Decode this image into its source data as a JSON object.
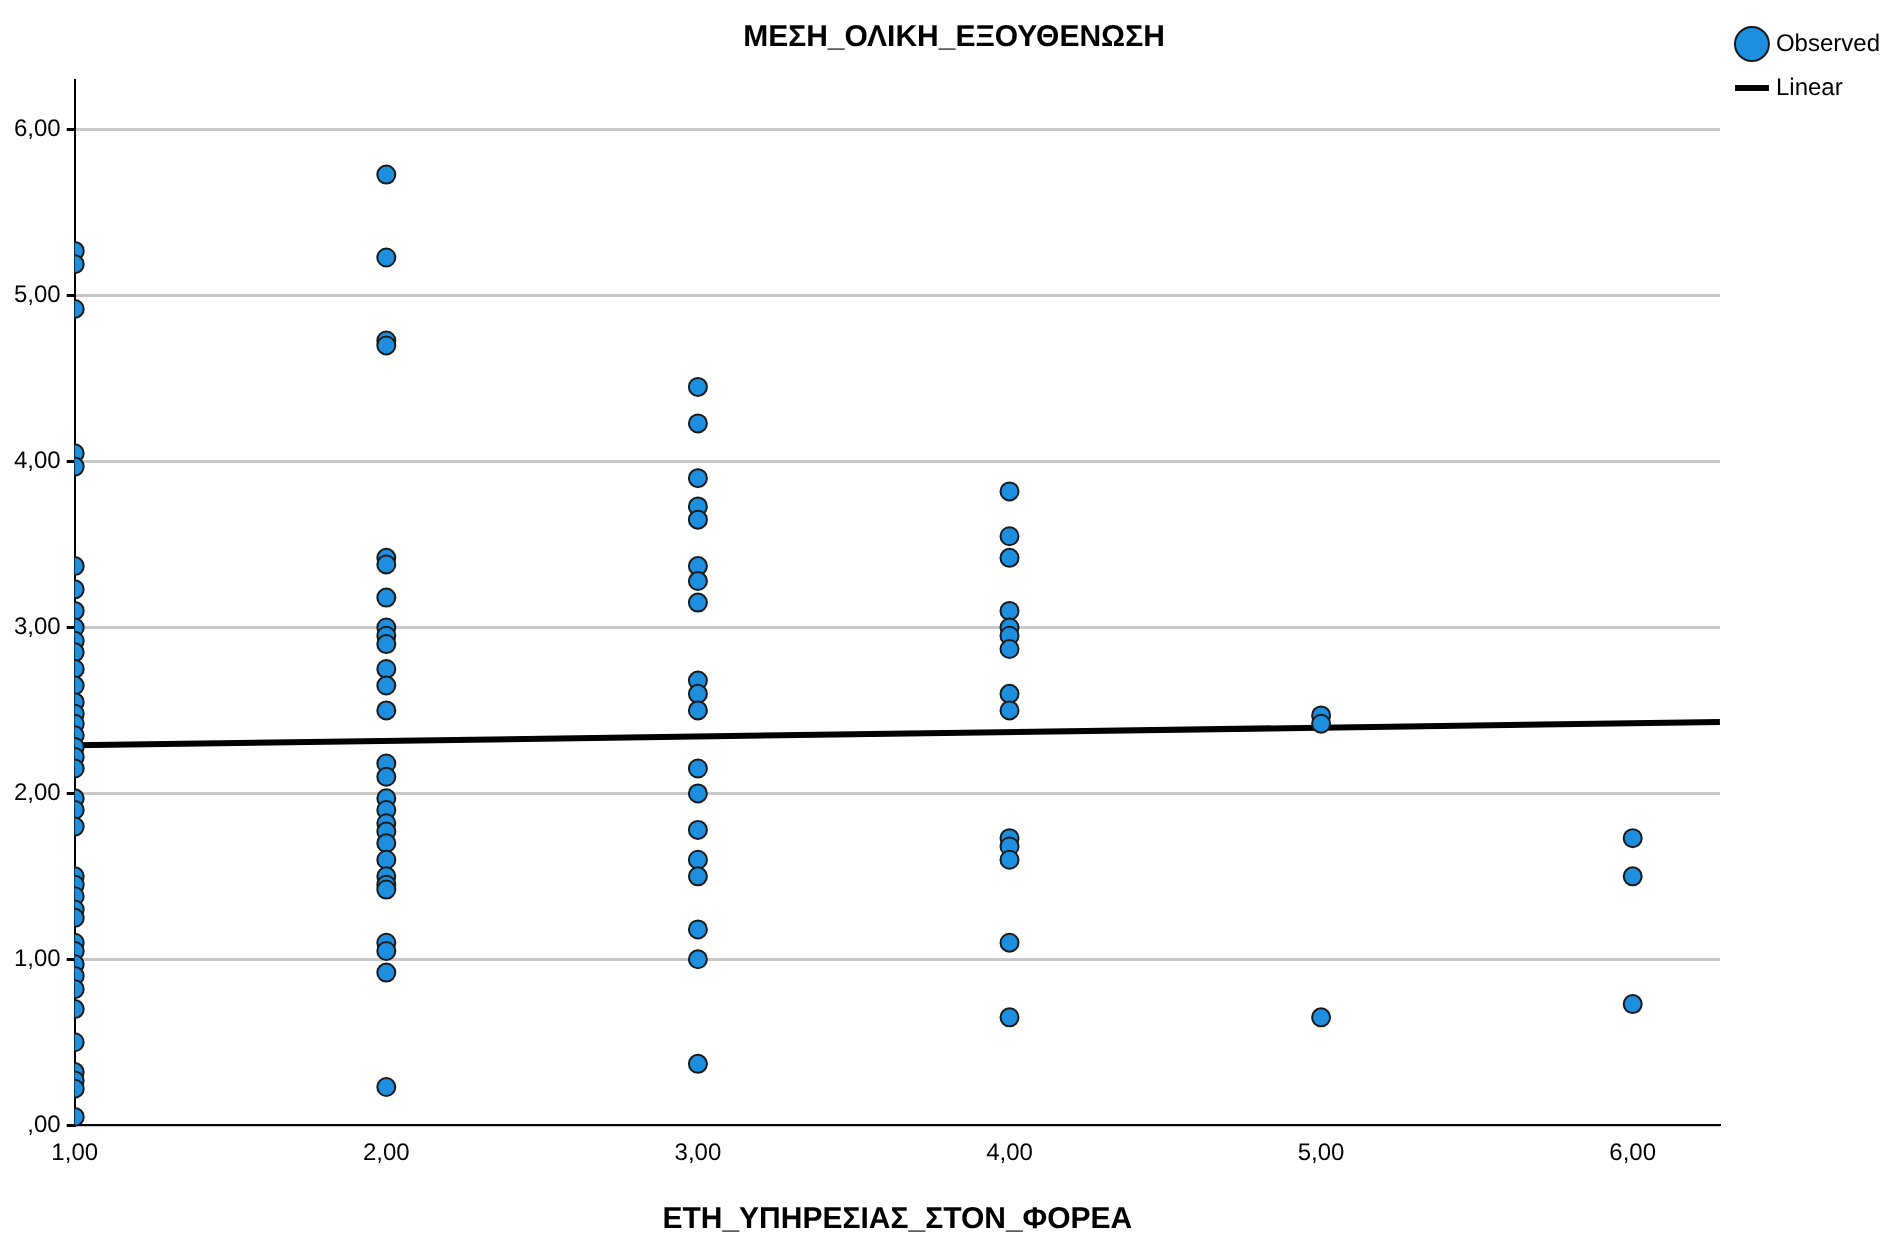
{
  "chart_data": {
    "type": "scatter",
    "title": "ΜΕΣΗ_ΟΛΙΚΗ_ΕΞΟΥΘΕΝΩΣΗ",
    "xlabel": "ΕΤΗ_ΥΠΗΡΕΣΙΑΣ_ΣΤΟΝ_ΦΟΡΕΑ",
    "xlim": [
      1,
      6.28
    ],
    "ylim": [
      0,
      6.3
    ],
    "xticks": [
      {
        "value": 1,
        "label": "1,00"
      },
      {
        "value": 2,
        "label": "2,00"
      },
      {
        "value": 3,
        "label": "3,00"
      },
      {
        "value": 4,
        "label": "4,00"
      },
      {
        "value": 5,
        "label": "5,00"
      },
      {
        "value": 6,
        "label": "6,00"
      }
    ],
    "yticks": [
      {
        "value": 0,
        "label": ",00"
      },
      {
        "value": 1,
        "label": "1,00"
      },
      {
        "value": 2,
        "label": "2,00"
      },
      {
        "value": 3,
        "label": "3,00"
      },
      {
        "value": 4,
        "label": "4,00"
      },
      {
        "value": 5,
        "label": "5,00"
      },
      {
        "value": 6,
        "label": "6,00"
      }
    ],
    "grid": "y",
    "legend": "top right",
    "marker": "circle",
    "series": [
      {
        "name": "Observed",
        "color": "#1e8fdf",
        "x": [
          1,
          1,
          1,
          1,
          1,
          1,
          1,
          1,
          1,
          1,
          1,
          1,
          1,
          1,
          1,
          1,
          1,
          1,
          1,
          1,
          1,
          1,
          1,
          1,
          1,
          1,
          1,
          1,
          1,
          1,
          1,
          1,
          1,
          1,
          1,
          1,
          1,
          1,
          1,
          2,
          2,
          2,
          2,
          2,
          2,
          2,
          2,
          2,
          2,
          2,
          2,
          2,
          2,
          2,
          2,
          2,
          2,
          2,
          2,
          2,
          2,
          2,
          2,
          2,
          2,
          2,
          2,
          3,
          3,
          3,
          3,
          3,
          3,
          3,
          3,
          3,
          3,
          3,
          3,
          3,
          3,
          3,
          3,
          3,
          3,
          3,
          4,
          4,
          4,
          4,
          4,
          4,
          4,
          4,
          4,
          4,
          4,
          4,
          4,
          4,
          5,
          5,
          5,
          6,
          6,
          6
        ],
        "values": [
          5.27,
          5.19,
          4.92,
          4.05,
          3.97,
          3.37,
          3.23,
          3.1,
          3.0,
          2.92,
          2.85,
          2.75,
          2.65,
          2.55,
          2.48,
          2.42,
          2.35,
          2.28,
          2.22,
          2.15,
          1.97,
          1.9,
          1.8,
          1.5,
          1.45,
          1.38,
          1.3,
          1.25,
          1.1,
          1.05,
          0.97,
          0.9,
          0.82,
          0.7,
          0.5,
          0.32,
          0.27,
          0.22,
          0.05,
          5.73,
          5.23,
          4.73,
          4.7,
          3.42,
          3.38,
          3.18,
          3.0,
          2.95,
          2.9,
          2.75,
          2.65,
          2.5,
          2.18,
          2.1,
          1.97,
          1.9,
          1.82,
          1.77,
          1.7,
          1.6,
          1.5,
          1.45,
          1.42,
          1.1,
          1.05,
          0.92,
          0.23,
          4.45,
          4.23,
          3.9,
          3.73,
          3.65,
          3.37,
          3.28,
          3.15,
          2.68,
          2.6,
          2.5,
          2.15,
          2.0,
          1.78,
          1.6,
          1.5,
          1.18,
          1.0,
          0.37,
          3.82,
          3.55,
          3.42,
          3.1,
          3.0,
          2.95,
          2.87,
          2.6,
          2.5,
          1.73,
          1.68,
          1.6,
          1.1,
          0.65,
          2.47,
          2.42,
          0.65,
          1.73,
          1.5,
          0.73
        ]
      },
      {
        "name": "Linear",
        "type": "line",
        "color": "#000000",
        "marker": "none",
        "x": [
          1,
          6.28
        ],
        "values": [
          2.29,
          2.43
        ]
      }
    ]
  }
}
